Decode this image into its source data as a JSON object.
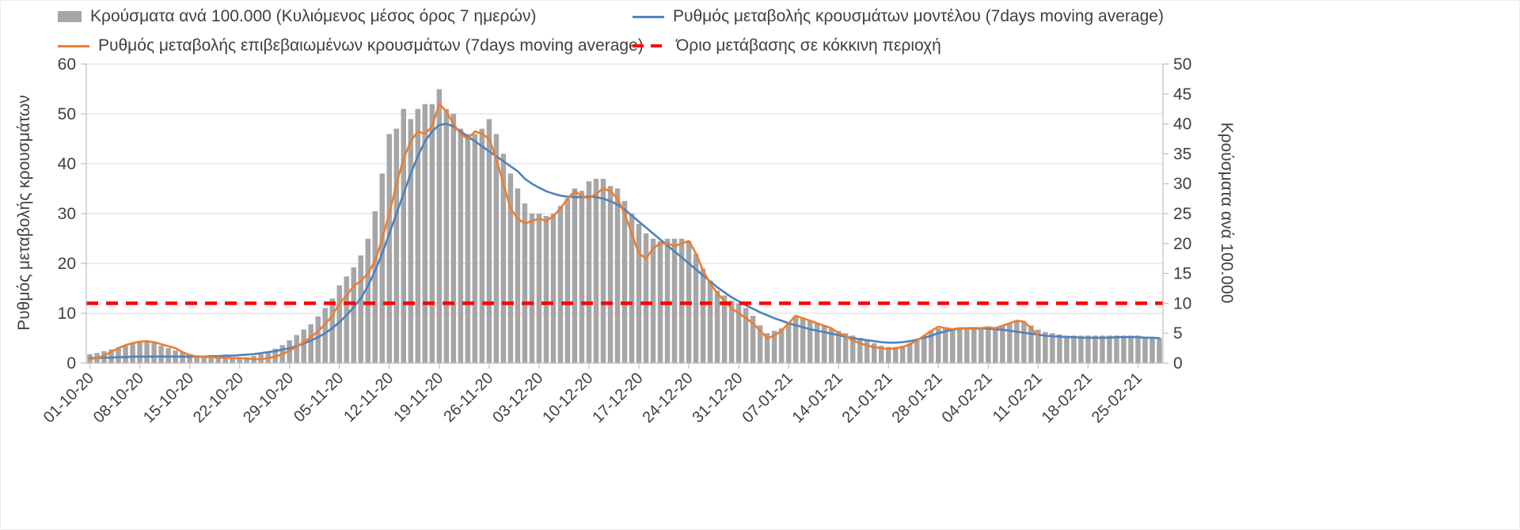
{
  "colors": {
    "bars": "#a6a6a6",
    "model": "#4f81bd",
    "confirmed": "#ed7d31",
    "threshold": "#ff0000",
    "grid": "#d9d9d9",
    "axis": "#bfbfbf",
    "text": "#404040"
  },
  "chart_data": {
    "type": "combo-bar-line",
    "n_points": 151,
    "tick_every": 7,
    "grid": "horizontal",
    "legend_position": "top",
    "x_tick_labels": [
      "01-10-20",
      "08-10-20",
      "15-10-20",
      "22-10-20",
      "29-10-20",
      "05-11-20",
      "12-11-20",
      "19-11-20",
      "26-11-20",
      "03-12-20",
      "10-12-20",
      "17-12-20",
      "24-12-20",
      "31-12-20",
      "07-01-21",
      "14-01-21",
      "21-01-21",
      "28-01-21",
      "04-02-21",
      "11-02-21",
      "18-02-21",
      "25-02-21"
    ],
    "left_axis": {
      "label": "Ρυθμός μεταβολής κρουσμάτων",
      "range": [
        0,
        60
      ],
      "ticks": [
        0,
        10,
        20,
        30,
        40,
        50,
        60
      ]
    },
    "right_axis": {
      "label": "Κρούσματα ανά 100.000",
      "range": [
        0,
        50
      ],
      "ticks": [
        0,
        5,
        10,
        15,
        20,
        25,
        30,
        35,
        40,
        45,
        50
      ]
    },
    "threshold": {
      "label": "Όριο μετάβασης σε κόκκινη περιοχή",
      "axis": "right",
      "value": 10
    },
    "series": [
      {
        "id": "cases_per_100k",
        "name": "Κρούσματα ανά 100.000 (Κυλιόμενος μέσος όρος 7 ημερών)",
        "type": "bar",
        "axis": "right",
        "values": [
          1.5,
          1.7,
          2.0,
          2.3,
          2.6,
          2.9,
          3.4,
          3.7,
          3.7,
          3.5,
          2.9,
          2.5,
          2.1,
          1.8,
          1.5,
          1.3,
          1.2,
          1.1,
          1.0,
          1.0,
          0.9,
          0.9,
          1.0,
          1.2,
          1.5,
          1.9,
          2.4,
          3.0,
          3.8,
          4.7,
          5.6,
          6.5,
          7.8,
          9.2,
          10.8,
          13.0,
          14.5,
          16.0,
          18.0,
          20.8,
          25.4,
          31.7,
          38.3,
          39.2,
          42.5,
          40.8,
          42.5,
          43.3,
          43.3,
          45.8,
          42.5,
          41.7,
          39.2,
          38.3,
          38.3,
          39.2,
          40.8,
          38.3,
          35.0,
          31.7,
          29.2,
          26.7,
          25.0,
          25.0,
          24.6,
          25.0,
          26.3,
          27.5,
          29.2,
          28.8,
          30.4,
          30.8,
          30.8,
          29.6,
          29.2,
          27.1,
          25.0,
          23.3,
          21.7,
          20.8,
          20.4,
          20.8,
          20.8,
          20.8,
          20.4,
          18.3,
          15.8,
          13.8,
          12.1,
          11.3,
          10.4,
          10.0,
          9.2,
          7.9,
          6.3,
          5.0,
          5.4,
          5.8,
          6.7,
          7.9,
          7.5,
          7.1,
          6.7,
          6.3,
          5.8,
          5.4,
          5.0,
          4.6,
          4.2,
          3.8,
          3.3,
          2.9,
          2.7,
          2.7,
          2.9,
          3.3,
          3.8,
          4.6,
          5.4,
          5.8,
          6.0,
          5.8,
          5.8,
          5.8,
          5.8,
          5.8,
          5.8,
          6.0,
          6.3,
          6.7,
          7.1,
          6.9,
          6.3,
          5.6,
          5.2,
          5.0,
          4.8,
          4.6,
          4.6,
          4.6,
          4.6,
          4.6,
          4.6,
          4.6,
          4.6,
          4.6,
          4.6,
          4.6,
          4.4,
          4.3,
          4.2
        ]
      },
      {
        "id": "model_rate",
        "name": "Ρυθμός μεταβολής κρουσμάτων μοντέλου (7days moving average)",
        "type": "line",
        "axis": "left",
        "values": [
          1.0,
          1.0,
          1.1,
          1.1,
          1.2,
          1.2,
          1.3,
          1.3,
          1.3,
          1.3,
          1.3,
          1.3,
          1.3,
          1.3,
          1.3,
          1.3,
          1.3,
          1.4,
          1.4,
          1.5,
          1.5,
          1.6,
          1.7,
          1.8,
          2.0,
          2.2,
          2.4,
          2.7,
          3.0,
          3.4,
          3.9,
          4.5,
          5.2,
          6.0,
          7.0,
          8.2,
          9.6,
          11.2,
          13.0,
          15.5,
          18.5,
          22.0,
          26.0,
          30.0,
          34.0,
          38.0,
          41.5,
          44.5,
          46.5,
          47.8,
          48.0,
          47.5,
          46.5,
          45.5,
          44.5,
          43.5,
          42.5,
          41.5,
          40.5,
          39.5,
          38.5,
          37.0,
          36.0,
          35.2,
          34.5,
          34.0,
          33.6,
          33.4,
          33.3,
          33.3,
          33.4,
          33.3,
          33.0,
          32.5,
          31.8,
          30.8,
          29.6,
          28.4,
          27.2,
          26.0,
          24.8,
          23.6,
          22.4,
          21.2,
          20.0,
          18.8,
          17.6,
          16.4,
          15.2,
          14.2,
          13.2,
          12.4,
          11.6,
          10.9,
          10.2,
          9.6,
          9.0,
          8.5,
          8.0,
          7.6,
          7.2,
          6.8,
          6.5,
          6.2,
          5.9,
          5.6,
          5.3,
          5.0,
          4.8,
          4.6,
          4.4,
          4.2,
          4.1,
          4.1,
          4.2,
          4.4,
          4.7,
          5.1,
          5.5,
          6.0,
          6.4,
          6.7,
          6.9,
          7.0,
          7.0,
          7.0,
          6.9,
          6.8,
          6.7,
          6.5,
          6.3,
          6.1,
          5.9,
          5.7,
          5.5,
          5.4,
          5.3,
          5.2,
          5.2,
          5.1,
          5.1,
          5.1,
          5.1,
          5.1,
          5.2,
          5.2,
          5.2,
          5.2,
          5.1,
          5.1,
          5.0
        ]
      },
      {
        "id": "confirmed_rate",
        "name": "Ρυθμός μεταβολής επιβεβαιωμένων κρουσμάτων (7days moving average)",
        "type": "line",
        "axis": "left",
        "values": [
          0.8,
          1.0,
          1.5,
          2.2,
          3.0,
          3.6,
          4.0,
          4.3,
          4.4,
          4.2,
          3.8,
          3.4,
          3.0,
          2.2,
          1.6,
          1.3,
          1.2,
          1.2,
          1.1,
          1.1,
          1.0,
          1.0,
          0.9,
          0.8,
          0.8,
          1.0,
          1.3,
          1.8,
          2.5,
          3.3,
          4.2,
          5.2,
          6.4,
          7.8,
          9.5,
          12.0,
          13.5,
          15.5,
          16.5,
          18.0,
          20.5,
          25.0,
          30.0,
          36.0,
          41.0,
          44.5,
          46.5,
          46.0,
          47.5,
          52.0,
          50.5,
          48.0,
          46.0,
          45.0,
          46.5,
          46.0,
          45.0,
          41.0,
          36.0,
          31.0,
          29.0,
          28.0,
          28.5,
          29.0,
          28.5,
          29.5,
          31.0,
          33.0,
          34.5,
          33.5,
          33.0,
          34.0,
          35.0,
          34.5,
          33.0,
          30.0,
          26.0,
          22.0,
          21.0,
          23.0,
          24.0,
          24.0,
          23.5,
          24.0,
          24.5,
          22.0,
          18.5,
          16.0,
          14.0,
          12.5,
          11.0,
          10.0,
          9.0,
          8.0,
          6.5,
          5.0,
          5.5,
          6.5,
          8.0,
          9.5,
          9.0,
          8.5,
          8.0,
          7.5,
          7.0,
          6.0,
          5.5,
          4.5,
          4.0,
          3.5,
          3.2,
          3.0,
          2.8,
          3.0,
          3.2,
          3.8,
          4.5,
          5.5,
          6.5,
          7.3,
          7.0,
          6.8,
          7.0,
          7.0,
          6.8,
          7.0,
          7.2,
          7.0,
          7.5,
          8.0,
          8.5,
          8.3,
          7.0,
          5.5,
          null,
          null,
          null,
          null,
          null,
          null,
          null,
          null,
          null,
          null,
          null,
          null,
          null,
          null,
          null,
          null,
          null
        ]
      }
    ]
  }
}
